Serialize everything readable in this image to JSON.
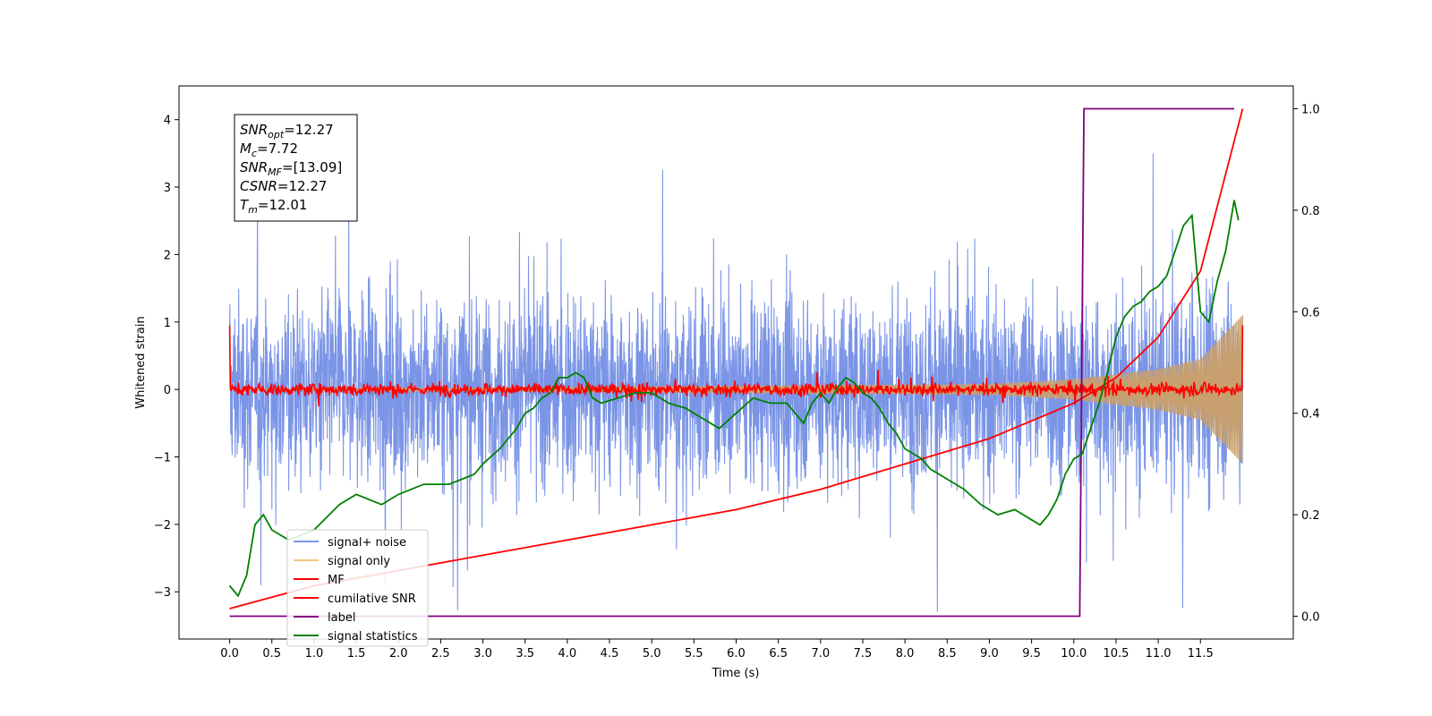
{
  "chart_data": {
    "type": "line",
    "title": "",
    "xlabel": "Time (s)",
    "ylabel": "Whitened strain",
    "xlim": [
      -0.6,
      12.6
    ],
    "ylim": [
      -3.7,
      4.5
    ],
    "y2lim": [
      -0.045,
      1.045
    ],
    "grid": false,
    "legend_position": "lower-left",
    "x_ticks": [
      "0.0",
      "0.5",
      "1.0",
      "1.5",
      "2.0",
      "2.5",
      "3.0",
      "3.5",
      "4.0",
      "4.5",
      "5.0",
      "5.5",
      "6.0",
      "6.5",
      "7.0",
      "7.5",
      "8.0",
      "8.5",
      "9.0",
      "9.5",
      "10.0",
      "10.5",
      "11.0",
      "11.5"
    ],
    "y_ticks": [
      "-3",
      "-2",
      "-1",
      "0",
      "1",
      "2",
      "3",
      "4"
    ],
    "y2_ticks": [
      "0.0",
      "0.2",
      "0.4",
      "0.6",
      "0.8",
      "1.0"
    ],
    "annotation": [
      {
        "sym": "SNR",
        "sub": "opt",
        "val": "=12.27"
      },
      {
        "sym": "M",
        "sub": "c",
        "val": "=7.72"
      },
      {
        "sym": "SNR",
        "sub": "MF",
        "val": "=[13.09]"
      },
      {
        "sym": "CSNR",
        "sub": "",
        "val": "=12.27"
      },
      {
        "sym": "T",
        "sub": "m",
        "val": "=12.01"
      }
    ],
    "series": [
      {
        "name": "signal+ noise",
        "color": "#7a94e6",
        "style": "noise",
        "x_range": [
          0,
          12
        ],
        "amplitude_approx": 3.2
      },
      {
        "name": "signal only",
        "color": "#f5c77a",
        "style": "chirp",
        "x_range": [
          0,
          12
        ],
        "envelope": {
          "x": [
            0,
            9,
            10,
            11,
            11.5,
            12
          ],
          "y": [
            0.0,
            0.08,
            0.15,
            0.3,
            0.45,
            1.1
          ]
        }
      },
      {
        "name": "MF",
        "color": "#ff0000",
        "style": "noise",
        "x_range": [
          0,
          12
        ],
        "amplitude_approx": 0.12
      },
      {
        "name": "cumilative SNR",
        "color": "#ff0000",
        "axis": "right",
        "x": [
          0,
          1,
          2,
          3,
          4,
          5,
          6,
          7,
          8,
          9,
          10,
          10.5,
          11,
          11.5,
          12
        ],
        "y": [
          0.015,
          0.06,
          0.09,
          0.12,
          0.15,
          0.18,
          0.21,
          0.25,
          0.3,
          0.35,
          0.42,
          0.47,
          0.55,
          0.68,
          1.0
        ]
      },
      {
        "name": "label",
        "color": "#800080",
        "axis": "right",
        "x": [
          0,
          10.07,
          10.12,
          11.9
        ],
        "y": [
          0,
          0,
          1,
          1
        ]
      },
      {
        "name": "signal statistics",
        "color": "#008000",
        "axis": "right",
        "x": [
          0,
          0.1,
          0.2,
          0.3,
          0.4,
          0.5,
          0.7,
          1.0,
          1.3,
          1.5,
          1.8,
          2.0,
          2.3,
          2.6,
          2.9,
          3.0,
          3.2,
          3.4,
          3.5,
          3.6,
          3.7,
          3.8,
          3.9,
          4.0,
          4.1,
          4.2,
          4.3,
          4.4,
          4.6,
          4.8,
          5.0,
          5.2,
          5.4,
          5.6,
          5.8,
          6.0,
          6.2,
          6.4,
          6.6,
          6.7,
          6.8,
          6.9,
          7.0,
          7.1,
          7.2,
          7.3,
          7.4,
          7.5,
          7.6,
          7.7,
          7.8,
          7.9,
          8.0,
          8.1,
          8.2,
          8.3,
          8.4,
          8.5,
          8.7,
          8.9,
          9.1,
          9.3,
          9.5,
          9.6,
          9.7,
          9.8,
          9.9,
          10.0,
          10.1,
          10.2,
          10.3,
          10.4,
          10.5,
          10.6,
          10.7,
          10.8,
          10.9,
          11.0,
          11.1,
          11.2,
          11.3,
          11.4,
          11.5,
          11.6,
          11.7,
          11.8,
          11.9,
          11.95
        ],
        "y": [
          0.06,
          0.04,
          0.08,
          0.18,
          0.2,
          0.17,
          0.15,
          0.17,
          0.22,
          0.24,
          0.22,
          0.24,
          0.26,
          0.26,
          0.28,
          0.3,
          0.33,
          0.37,
          0.4,
          0.41,
          0.43,
          0.44,
          0.47,
          0.47,
          0.48,
          0.47,
          0.43,
          0.42,
          0.43,
          0.44,
          0.44,
          0.42,
          0.41,
          0.39,
          0.37,
          0.4,
          0.43,
          0.42,
          0.42,
          0.4,
          0.38,
          0.42,
          0.44,
          0.42,
          0.45,
          0.47,
          0.46,
          0.44,
          0.43,
          0.41,
          0.38,
          0.36,
          0.33,
          0.32,
          0.31,
          0.29,
          0.28,
          0.27,
          0.25,
          0.22,
          0.2,
          0.21,
          0.19,
          0.18,
          0.2,
          0.23,
          0.28,
          0.31,
          0.32,
          0.37,
          0.42,
          0.48,
          0.55,
          0.59,
          0.61,
          0.62,
          0.64,
          0.65,
          0.67,
          0.72,
          0.77,
          0.79,
          0.6,
          0.58,
          0.66,
          0.72,
          0.82,
          0.78
        ]
      }
    ]
  }
}
